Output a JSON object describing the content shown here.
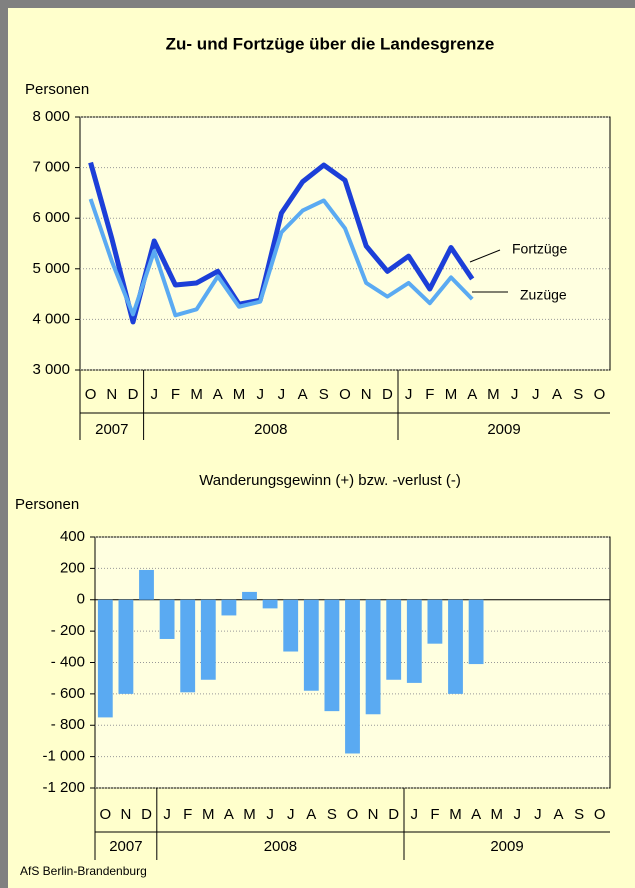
{
  "chart_data": [
    {
      "type": "line",
      "title": "Zu- und Fortzüge über die Landesgrenze",
      "y_label": "Personen",
      "categories": [
        "O",
        "N",
        "D",
        "J",
        "F",
        "M",
        "A",
        "M",
        "J",
        "J",
        "A",
        "S",
        "O",
        "N",
        "D",
        "J",
        "F",
        "M",
        "A",
        "M",
        "J",
        "J",
        "A",
        "S",
        "O"
      ],
      "year_groups": [
        {
          "label": "2007",
          "count": 3
        },
        {
          "label": "2008",
          "count": 12
        },
        {
          "label": "2009",
          "count": 10
        }
      ],
      "series": [
        {
          "name": "Fortzüge",
          "color": "#1c3fd8",
          "values": [
            7100,
            5600,
            3950,
            5550,
            4680,
            4720,
            4950,
            4300,
            4380,
            6100,
            6720,
            7050,
            6750,
            5450,
            4950,
            5250,
            4600,
            5420,
            4800,
            null,
            null,
            null,
            null,
            null,
            null
          ]
        },
        {
          "name": "Zuzüge",
          "color": "#5aaaf2",
          "values": [
            6380,
            5150,
            4100,
            5350,
            4080,
            4200,
            4850,
            4250,
            4350,
            5720,
            6150,
            6350,
            5800,
            4720,
            4450,
            4720,
            4320,
            4830,
            4400,
            null,
            null,
            null,
            null,
            null,
            null
          ]
        }
      ],
      "ylim": [
        3000,
        8000
      ],
      "yticks": [
        {
          "value": 3000,
          "label": "3 000"
        },
        {
          "value": 4000,
          "label": "4 000"
        },
        {
          "value": 5000,
          "label": "5 000"
        },
        {
          "value": 6000,
          "label": "6 000"
        },
        {
          "value": 7000,
          "label": "7 000"
        },
        {
          "value": 8000,
          "label": "8 000"
        }
      ],
      "grid": true,
      "plot_background": "#ffffe0"
    },
    {
      "type": "bar",
      "title": "Wanderungsgewinn (+) bzw. -verlust (-)",
      "y_label": "Personen",
      "categories": [
        "O",
        "N",
        "D",
        "J",
        "F",
        "M",
        "A",
        "M",
        "J",
        "J",
        "A",
        "S",
        "O",
        "N",
        "D",
        "J",
        "F",
        "M",
        "A",
        "M",
        "J",
        "J",
        "A",
        "S",
        "O"
      ],
      "year_groups": [
        {
          "label": "2007",
          "count": 3
        },
        {
          "label": "2008",
          "count": 12
        },
        {
          "label": "2009",
          "count": 10
        }
      ],
      "values": [
        -750,
        -600,
        190,
        -250,
        -590,
        -510,
        -100,
        50,
        -55,
        -330,
        -580,
        -710,
        -980,
        -730,
        -510,
        -530,
        -280,
        -600,
        -410,
        null,
        null,
        null,
        null,
        null,
        null
      ],
      "color": "#5aaaf2",
      "ylim": [
        -1200,
        400
      ],
      "yticks": [
        {
          "value": -1200,
          "label": "-1 200"
        },
        {
          "value": -1000,
          "label": "-1 000"
        },
        {
          "value": -800,
          "label": "- 800"
        },
        {
          "value": -600,
          "label": "- 600"
        },
        {
          "value": -400,
          "label": "- 400"
        },
        {
          "value": -200,
          "label": "- 200"
        },
        0,
        200,
        400
      ],
      "grid": true,
      "plot_background": "#ffffe0"
    }
  ],
  "footer": "AfS Berlin-Brandenburg"
}
